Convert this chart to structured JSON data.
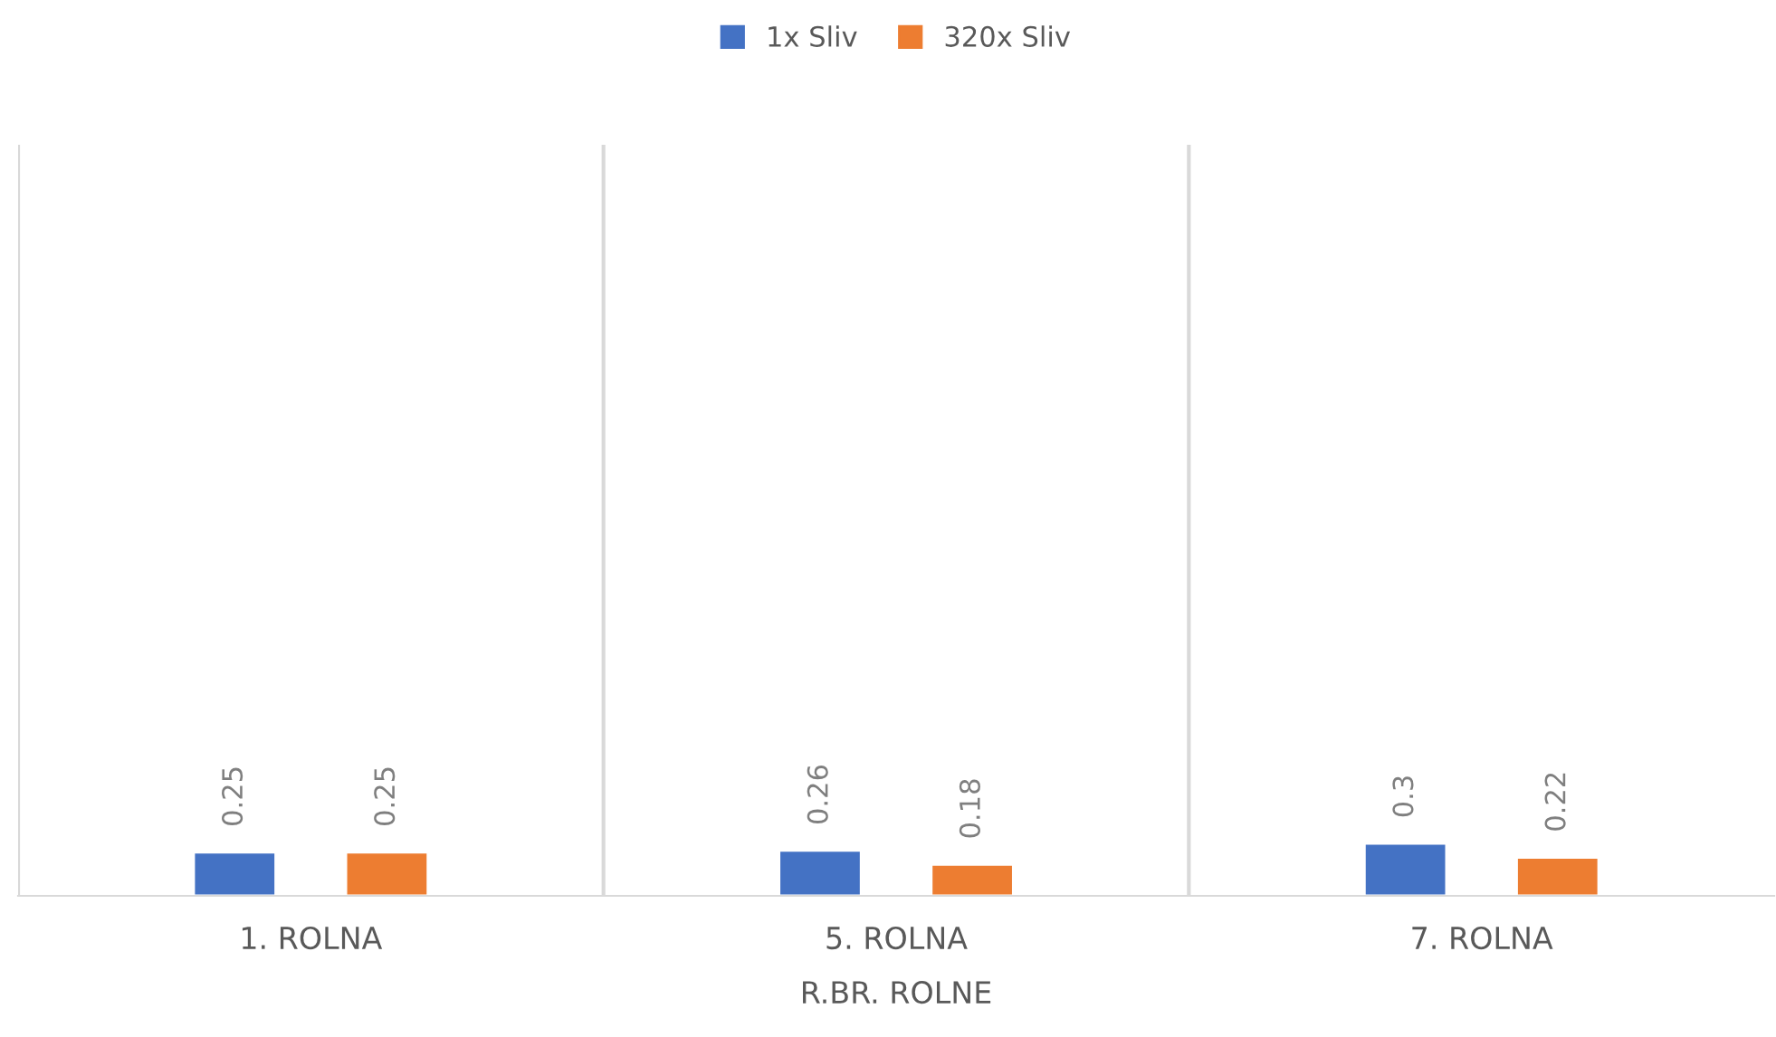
{
  "chart_data": {
    "type": "bar",
    "categories": [
      "1. ROLNA",
      "5. ROLNA",
      "7. ROLNA"
    ],
    "xlabel": "R.BR. ROLNE",
    "series": [
      {
        "name": "1x Sliv",
        "color": "#4472c4",
        "values": [
          0.25,
          0.26,
          0.3
        ]
      },
      {
        "name": "320x Sliv",
        "color": "#ed7d31",
        "values": [
          0.25,
          0.18,
          0.22
        ]
      }
    ],
    "ylim": [
      0,
      4.3
    ],
    "tick_labels": "x",
    "data_labels": true,
    "legend": "top",
    "grid": "x"
  }
}
